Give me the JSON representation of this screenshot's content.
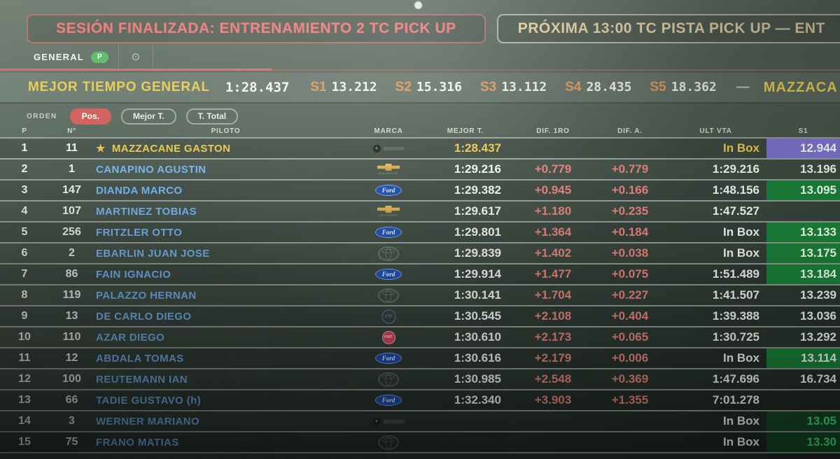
{
  "banners": {
    "session": "SESIÓN FINALIZADA: ENTRENAMIENTO 2 TC PICK UP",
    "next": "PRÓXIMA 13:00 TC PISTA PICK UP — ENT"
  },
  "tabs": {
    "general_label": "GENERAL",
    "badge": "P",
    "gear_icon": "⊙"
  },
  "best_bar": {
    "label": "MEJOR TIEMPO GENERAL",
    "time": "1:28.437",
    "sectors": [
      {
        "label": "S1",
        "value": "13.212"
      },
      {
        "label": "S2",
        "value": "15.316"
      },
      {
        "label": "S3",
        "value": "13.112"
      },
      {
        "label": "S4",
        "value": "28.435"
      },
      {
        "label": "S5",
        "value": "18.362"
      }
    ],
    "dash": "—",
    "driver": "MAZZACA"
  },
  "filters": {
    "orden_label": "ORDEN",
    "options": [
      {
        "label": "Pos.",
        "active": true
      },
      {
        "label": "Mejor T.",
        "active": false
      },
      {
        "label": "T. Total",
        "active": false
      }
    ]
  },
  "table": {
    "headers": {
      "p": "P",
      "n": "N°",
      "piloto": "PILOTO",
      "marca": "MARCA",
      "mejor": "MEJOR T.",
      "dif1": "DIF. 1RO",
      "difa": "DIF. A.",
      "ult": "ULT VTA",
      "s1": "S1"
    },
    "rows": [
      {
        "p": "1",
        "n": "11",
        "star": "★",
        "piloto": "MAZZACANE GASTON",
        "marca": "nissan",
        "mejor": "1:28.437",
        "dif1": "",
        "difa": "",
        "ult": "In Box",
        "s1": "12.944",
        "s1_style": "purple",
        "leader": true
      },
      {
        "p": "2",
        "n": "1",
        "star": "",
        "piloto": "CANAPINO AGUSTIN",
        "marca": "chevrolet",
        "mejor": "1:29.216",
        "dif1": "+0.779",
        "difa": "+0.779",
        "ult": "1:29.216",
        "s1": "13.196",
        "s1_style": "plain",
        "leader": false
      },
      {
        "p": "3",
        "n": "147",
        "star": "",
        "piloto": "DIANDA MARCO",
        "marca": "ford",
        "mejor": "1:29.382",
        "dif1": "+0.945",
        "difa": "+0.166",
        "ult": "1:48.156",
        "s1": "13.095",
        "s1_style": "green",
        "leader": false
      },
      {
        "p": "4",
        "n": "107",
        "star": "",
        "piloto": "MARTINEZ TOBIAS",
        "marca": "chevrolet",
        "mejor": "1:29.617",
        "dif1": "+1.180",
        "difa": "+0.235",
        "ult": "1:47.527",
        "s1": "",
        "s1_style": "none",
        "leader": false
      },
      {
        "p": "5",
        "n": "256",
        "star": "",
        "piloto": "FRITZLER OTTO",
        "marca": "ford",
        "mejor": "1:29.801",
        "dif1": "+1.364",
        "difa": "+0.184",
        "ult": "In Box",
        "s1": "13.133",
        "s1_style": "green",
        "leader": false
      },
      {
        "p": "6",
        "n": "2",
        "star": "",
        "piloto": "EBARLIN JUAN JOSE",
        "marca": "toyota",
        "mejor": "1:29.839",
        "dif1": "+1.402",
        "difa": "+0.038",
        "ult": "In Box",
        "s1": "13.175",
        "s1_style": "green",
        "leader": false
      },
      {
        "p": "7",
        "n": "86",
        "star": "",
        "piloto": "FAIN IGNACIO",
        "marca": "ford",
        "mejor": "1:29.914",
        "dif1": "+1.477",
        "difa": "+0.075",
        "ult": "1:51.489",
        "s1": "13.184",
        "s1_style": "green",
        "leader": false
      },
      {
        "p": "8",
        "n": "119",
        "star": "",
        "piloto": "PALAZZO HERNAN",
        "marca": "toyota",
        "mejor": "1:30.141",
        "dif1": "+1.704",
        "difa": "+0.227",
        "ult": "1:41.507",
        "s1": "13.239",
        "s1_style": "plain",
        "leader": false
      },
      {
        "p": "9",
        "n": "13",
        "star": "",
        "piloto": "DE CARLO DIEGO",
        "marca": "vw",
        "mejor": "1:30.545",
        "dif1": "+2.108",
        "difa": "+0.404",
        "ult": "1:39.388",
        "s1": "13.036",
        "s1_style": "plain",
        "leader": false
      },
      {
        "p": "10",
        "n": "110",
        "star": "",
        "piloto": "AZAR DIEGO",
        "marca": "fiat",
        "mejor": "1:30.610",
        "dif1": "+2.173",
        "difa": "+0.065",
        "ult": "1:30.725",
        "s1": "13.292",
        "s1_style": "plain",
        "leader": false
      },
      {
        "p": "11",
        "n": "12",
        "star": "",
        "piloto": "ABDALA TOMAS",
        "marca": "ford",
        "mejor": "1:30.616",
        "dif1": "+2.179",
        "difa": "+0.006",
        "ult": "In Box",
        "s1": "13.114",
        "s1_style": "green",
        "leader": false
      },
      {
        "p": "12",
        "n": "100",
        "star": "",
        "piloto": "REUTEMANN IAN",
        "marca": "toyota",
        "mejor": "1:30.985",
        "dif1": "+2.548",
        "difa": "+0.369",
        "ult": "1:47.696",
        "s1": "16.734",
        "s1_style": "plain",
        "leader": false
      },
      {
        "p": "13",
        "n": "66",
        "star": "",
        "piloto": "TADIE GUSTAVO (h)",
        "marca": "ford",
        "mejor": "1:32.340",
        "dif1": "+3.903",
        "difa": "+1.355",
        "ult": "7:01.278",
        "s1": "",
        "s1_style": "none",
        "leader": false
      },
      {
        "p": "14",
        "n": "3",
        "star": "",
        "piloto": "WERNER MARIANO",
        "marca": "nissan",
        "mejor": "",
        "dif1": "",
        "difa": "",
        "ult": "In Box",
        "s1": "13.05",
        "s1_style": "green-dark",
        "leader": false
      },
      {
        "p": "15",
        "n": "75",
        "star": "",
        "piloto": "FRANO MATIAS",
        "marca": "toyota",
        "mejor": "",
        "dif1": "",
        "difa": "",
        "ult": "In Box",
        "s1": "13.30",
        "s1_style": "green-dark",
        "leader": false
      }
    ]
  },
  "colors": {
    "leader_yellow": "#ecc94f",
    "driver_blue": "#79b6f2",
    "gap_red": "#e5837c",
    "sector_best_green": "#1a8038",
    "overall_best_purple": "#7d73d0",
    "session_banner_red": "#e87d7d",
    "next_banner_cream": "#ecd9a8",
    "active_pill_red": "#d2625e",
    "badge_green": "#5dbb6a"
  }
}
